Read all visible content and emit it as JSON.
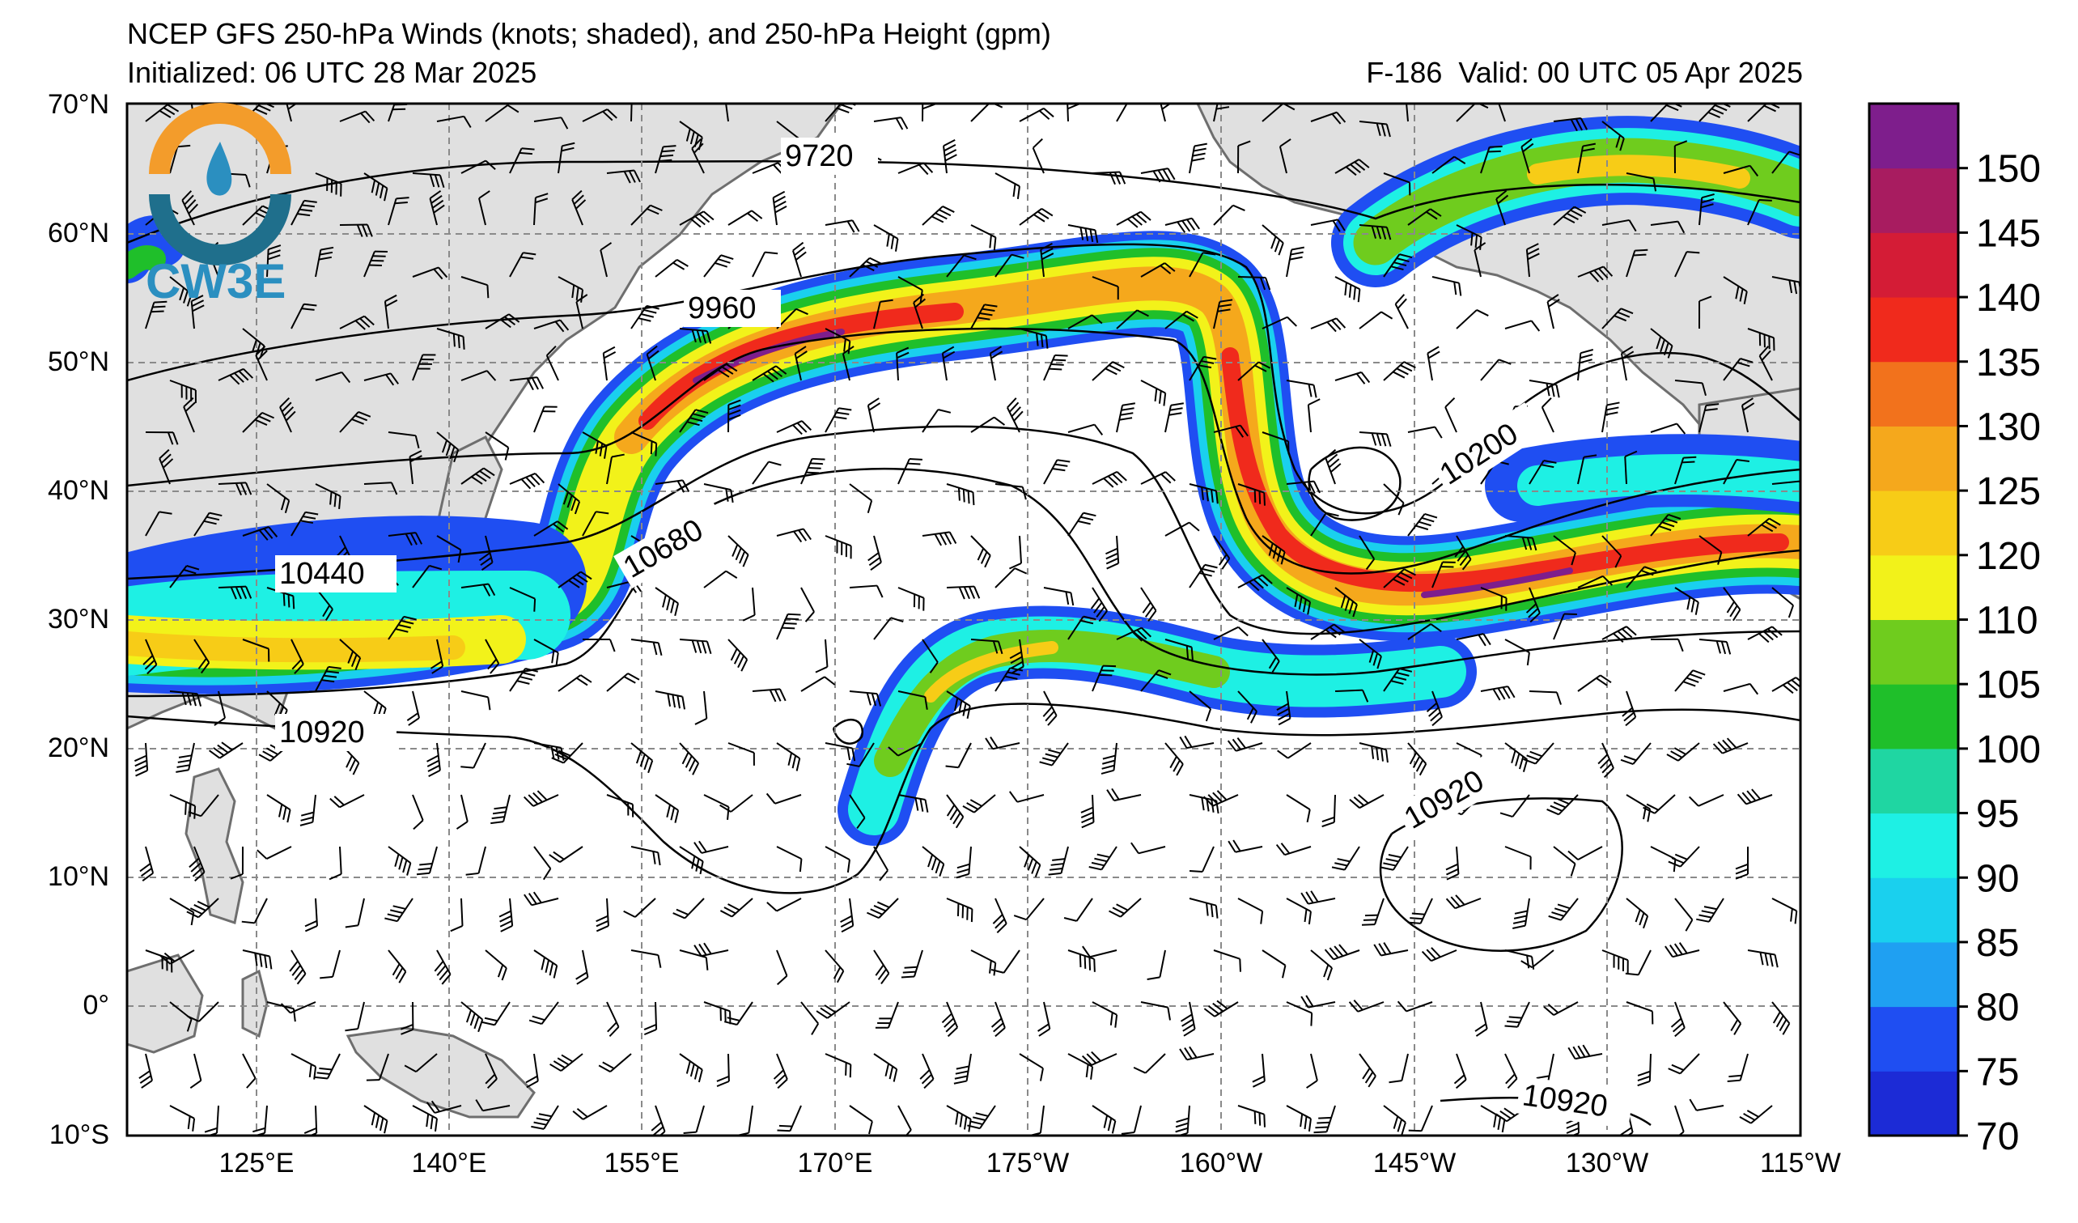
{
  "header": {
    "title": "NCEP GFS 250-hPa Winds (knots; shaded), and 250-hPa Height (gpm)",
    "initialized": "Initialized: 06 UTC 28 Mar 2025",
    "forecast_hour": "F-186",
    "valid": "Valid: 00 UTC 05 Apr 2025"
  },
  "logo": {
    "text": "CW3E"
  },
  "map": {
    "lat_labels": [
      "70°N",
      "60°N",
      "50°N",
      "40°N",
      "30°N",
      "20°N",
      "10°N",
      "0°",
      "10°S"
    ],
    "lon_labels": [
      "125°E",
      "140°E",
      "155°E",
      "170°E",
      "175°W",
      "160°W",
      "145°W",
      "130°W",
      "115°W"
    ],
    "contour_labels": [
      "9720",
      "9960",
      "10200",
      "10440",
      "10680",
      "10920",
      "10920",
      "10920"
    ],
    "colors": {
      "land": "#e0e0e0",
      "coast": "#6e6e6e",
      "grid": "#8a8a8a",
      "contour": "#000000"
    }
  },
  "colorbar": {
    "labels": [
      "70",
      "75",
      "80",
      "85",
      "90",
      "95",
      "100",
      "105",
      "110",
      "120",
      "125",
      "130",
      "135",
      "140",
      "145",
      "150"
    ],
    "colors": [
      "#1c2bd6",
      "#1f4ef2",
      "#1fa0f2",
      "#1ad0ee",
      "#1ef0e4",
      "#1fd6a2",
      "#1fbf2a",
      "#6fcc1e",
      "#f2f21a",
      "#f7cc17",
      "#f5a81c",
      "#f2721c",
      "#f02a1c",
      "#d41c36",
      "#a81c60",
      "#7e1e8c"
    ]
  }
}
